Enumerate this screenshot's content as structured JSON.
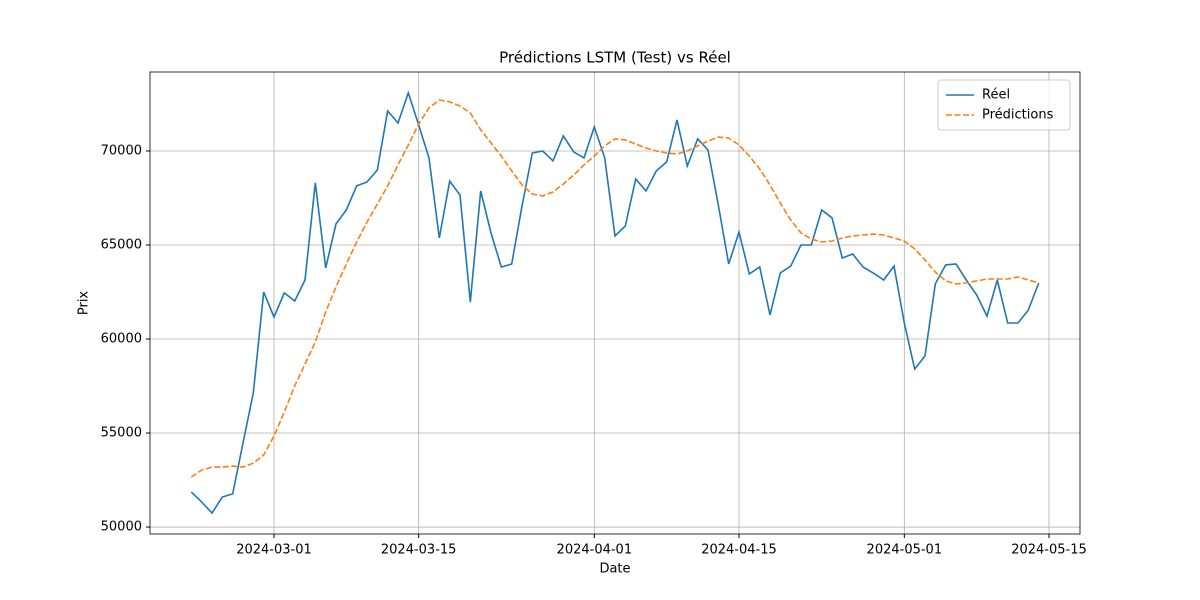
{
  "chart_data": {
    "type": "line",
    "title": "Prédictions LSTM (Test) vs Réel",
    "xlabel": "Date",
    "ylabel": "Prix",
    "x": [
      "2024-02-22",
      "2024-02-23",
      "2024-02-24",
      "2024-02-25",
      "2024-02-26",
      "2024-02-27",
      "2024-02-28",
      "2024-02-29",
      "2024-03-01",
      "2024-03-02",
      "2024-03-03",
      "2024-03-04",
      "2024-03-05",
      "2024-03-06",
      "2024-03-07",
      "2024-03-08",
      "2024-03-09",
      "2024-03-10",
      "2024-03-11",
      "2024-03-12",
      "2024-03-13",
      "2024-03-14",
      "2024-03-15",
      "2024-03-16",
      "2024-03-17",
      "2024-03-18",
      "2024-03-19",
      "2024-03-20",
      "2024-03-21",
      "2024-03-22",
      "2024-03-23",
      "2024-03-24",
      "2024-03-25",
      "2024-03-26",
      "2024-03-27",
      "2024-03-28",
      "2024-03-29",
      "2024-03-30",
      "2024-03-31",
      "2024-04-01",
      "2024-04-02",
      "2024-04-03",
      "2024-04-04",
      "2024-04-05",
      "2024-04-06",
      "2024-04-07",
      "2024-04-08",
      "2024-04-09",
      "2024-04-10",
      "2024-04-11",
      "2024-04-12",
      "2024-04-13",
      "2024-04-14",
      "2024-04-15",
      "2024-04-16",
      "2024-04-17",
      "2024-04-18",
      "2024-04-19",
      "2024-04-20",
      "2024-04-21",
      "2024-04-22",
      "2024-04-23",
      "2024-04-24",
      "2024-04-25",
      "2024-04-26",
      "2024-04-27",
      "2024-04-28",
      "2024-04-29",
      "2024-04-30",
      "2024-05-01",
      "2024-05-02",
      "2024-05-03",
      "2024-05-04",
      "2024-05-05",
      "2024-05-06",
      "2024-05-07",
      "2024-05-08",
      "2024-05-09",
      "2024-05-10",
      "2024-05-11",
      "2024-05-12",
      "2024-05-13",
      "2024-05-14"
    ],
    "series": [
      {
        "name": "Réel",
        "color": "#1f77b4",
        "linestyle": "solid",
        "values": [
          51860,
          51330,
          50740,
          51600,
          51760,
          54470,
          57130,
          62500,
          61170,
          62450,
          62020,
          63140,
          68300,
          63780,
          66120,
          66860,
          68140,
          68350,
          68990,
          72130,
          71490,
          73090,
          71380,
          69630,
          65370,
          68400,
          67660,
          61970,
          67870,
          65640,
          63830,
          63990,
          67070,
          69890,
          70000,
          69470,
          70800,
          69950,
          69630,
          71280,
          69630,
          65480,
          66010,
          68510,
          67870,
          68940,
          69420,
          71650,
          69200,
          70640,
          70050,
          67130,
          63990,
          65690,
          63460,
          63830,
          61280,
          63510,
          63880,
          65000,
          65000,
          66860,
          66440,
          64310,
          64520,
          63830,
          63510,
          63140,
          63880,
          60850,
          58400,
          59100,
          62930,
          63940,
          63990,
          63140,
          62340,
          61220,
          63140,
          60850,
          60850,
          61540,
          62980
        ]
      },
      {
        "name": "Prédictions",
        "color": "#ff7f0e",
        "linestyle": "dashed",
        "values": [
          52660,
          53030,
          53190,
          53190,
          53240,
          53190,
          53400,
          53830,
          54840,
          56120,
          57500,
          58670,
          59840,
          61440,
          62770,
          63990,
          65160,
          66220,
          67180,
          68140,
          69260,
          70320,
          71440,
          72290,
          72710,
          72610,
          72390,
          72020,
          71120,
          70430,
          69730,
          68940,
          68190,
          67710,
          67610,
          67820,
          68240,
          68720,
          69260,
          69730,
          70270,
          70640,
          70590,
          70370,
          70160,
          70000,
          69890,
          69840,
          70000,
          70270,
          70530,
          70740,
          70690,
          70320,
          69730,
          69040,
          68190,
          67230,
          66330,
          65640,
          65320,
          65160,
          65210,
          65370,
          65480,
          65530,
          65580,
          65530,
          65370,
          65210,
          64790,
          64200,
          63560,
          63090,
          62930,
          62980,
          63090,
          63190,
          63190,
          63190,
          63300,
          63140,
          62980
        ]
      }
    ],
    "xlim": [
      "2024-02-18",
      "2024-05-18"
    ],
    "xticks": [
      "2024-03-01",
      "2024-03-15",
      "2024-04-01",
      "2024-04-15",
      "2024-05-01",
      "2024-05-15"
    ],
    "ylim": [
      49630,
      74200
    ],
    "yticks": [
      50000,
      55000,
      60000,
      65000,
      70000
    ],
    "grid": true,
    "legend": "upper right"
  }
}
